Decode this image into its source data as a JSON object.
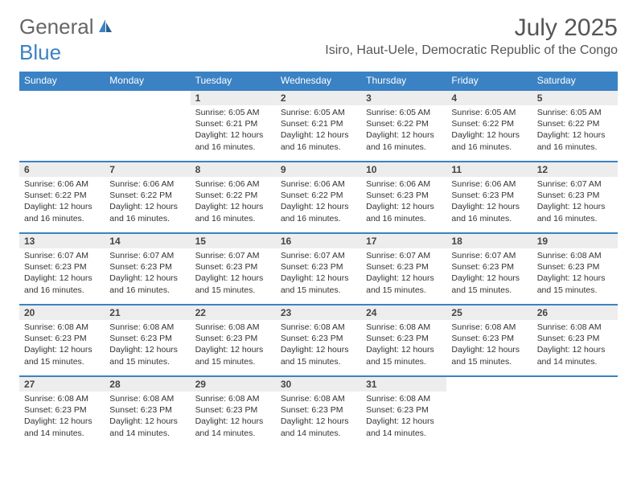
{
  "logo": {
    "text_gray": "General",
    "text_blue": "Blue"
  },
  "header": {
    "month_title": "July 2025",
    "location": "Isiro, Haut-Uele, Democratic Republic of the Congo"
  },
  "colors": {
    "header_bg": "#3b82c4",
    "header_text": "#ffffff",
    "daynum_bg": "#ededed",
    "border": "#3b82c4",
    "body_text": "#333333"
  },
  "day_labels": [
    "Sunday",
    "Monday",
    "Tuesday",
    "Wednesday",
    "Thursday",
    "Friday",
    "Saturday"
  ],
  "weeks": [
    {
      "days": [
        {
          "num": "",
          "sunrise": "",
          "sunset": "",
          "daylight": ""
        },
        {
          "num": "",
          "sunrise": "",
          "sunset": "",
          "daylight": ""
        },
        {
          "num": "1",
          "sunrise": "Sunrise: 6:05 AM",
          "sunset": "Sunset: 6:21 PM",
          "daylight": "Daylight: 12 hours and 16 minutes."
        },
        {
          "num": "2",
          "sunrise": "Sunrise: 6:05 AM",
          "sunset": "Sunset: 6:21 PM",
          "daylight": "Daylight: 12 hours and 16 minutes."
        },
        {
          "num": "3",
          "sunrise": "Sunrise: 6:05 AM",
          "sunset": "Sunset: 6:22 PM",
          "daylight": "Daylight: 12 hours and 16 minutes."
        },
        {
          "num": "4",
          "sunrise": "Sunrise: 6:05 AM",
          "sunset": "Sunset: 6:22 PM",
          "daylight": "Daylight: 12 hours and 16 minutes."
        },
        {
          "num": "5",
          "sunrise": "Sunrise: 6:05 AM",
          "sunset": "Sunset: 6:22 PM",
          "daylight": "Daylight: 12 hours and 16 minutes."
        }
      ]
    },
    {
      "days": [
        {
          "num": "6",
          "sunrise": "Sunrise: 6:06 AM",
          "sunset": "Sunset: 6:22 PM",
          "daylight": "Daylight: 12 hours and 16 minutes."
        },
        {
          "num": "7",
          "sunrise": "Sunrise: 6:06 AM",
          "sunset": "Sunset: 6:22 PM",
          "daylight": "Daylight: 12 hours and 16 minutes."
        },
        {
          "num": "8",
          "sunrise": "Sunrise: 6:06 AM",
          "sunset": "Sunset: 6:22 PM",
          "daylight": "Daylight: 12 hours and 16 minutes."
        },
        {
          "num": "9",
          "sunrise": "Sunrise: 6:06 AM",
          "sunset": "Sunset: 6:22 PM",
          "daylight": "Daylight: 12 hours and 16 minutes."
        },
        {
          "num": "10",
          "sunrise": "Sunrise: 6:06 AM",
          "sunset": "Sunset: 6:23 PM",
          "daylight": "Daylight: 12 hours and 16 minutes."
        },
        {
          "num": "11",
          "sunrise": "Sunrise: 6:06 AM",
          "sunset": "Sunset: 6:23 PM",
          "daylight": "Daylight: 12 hours and 16 minutes."
        },
        {
          "num": "12",
          "sunrise": "Sunrise: 6:07 AM",
          "sunset": "Sunset: 6:23 PM",
          "daylight": "Daylight: 12 hours and 16 minutes."
        }
      ]
    },
    {
      "days": [
        {
          "num": "13",
          "sunrise": "Sunrise: 6:07 AM",
          "sunset": "Sunset: 6:23 PM",
          "daylight": "Daylight: 12 hours and 16 minutes."
        },
        {
          "num": "14",
          "sunrise": "Sunrise: 6:07 AM",
          "sunset": "Sunset: 6:23 PM",
          "daylight": "Daylight: 12 hours and 16 minutes."
        },
        {
          "num": "15",
          "sunrise": "Sunrise: 6:07 AM",
          "sunset": "Sunset: 6:23 PM",
          "daylight": "Daylight: 12 hours and 15 minutes."
        },
        {
          "num": "16",
          "sunrise": "Sunrise: 6:07 AM",
          "sunset": "Sunset: 6:23 PM",
          "daylight": "Daylight: 12 hours and 15 minutes."
        },
        {
          "num": "17",
          "sunrise": "Sunrise: 6:07 AM",
          "sunset": "Sunset: 6:23 PM",
          "daylight": "Daylight: 12 hours and 15 minutes."
        },
        {
          "num": "18",
          "sunrise": "Sunrise: 6:07 AM",
          "sunset": "Sunset: 6:23 PM",
          "daylight": "Daylight: 12 hours and 15 minutes."
        },
        {
          "num": "19",
          "sunrise": "Sunrise: 6:08 AM",
          "sunset": "Sunset: 6:23 PM",
          "daylight": "Daylight: 12 hours and 15 minutes."
        }
      ]
    },
    {
      "days": [
        {
          "num": "20",
          "sunrise": "Sunrise: 6:08 AM",
          "sunset": "Sunset: 6:23 PM",
          "daylight": "Daylight: 12 hours and 15 minutes."
        },
        {
          "num": "21",
          "sunrise": "Sunrise: 6:08 AM",
          "sunset": "Sunset: 6:23 PM",
          "daylight": "Daylight: 12 hours and 15 minutes."
        },
        {
          "num": "22",
          "sunrise": "Sunrise: 6:08 AM",
          "sunset": "Sunset: 6:23 PM",
          "daylight": "Daylight: 12 hours and 15 minutes."
        },
        {
          "num": "23",
          "sunrise": "Sunrise: 6:08 AM",
          "sunset": "Sunset: 6:23 PM",
          "daylight": "Daylight: 12 hours and 15 minutes."
        },
        {
          "num": "24",
          "sunrise": "Sunrise: 6:08 AM",
          "sunset": "Sunset: 6:23 PM",
          "daylight": "Daylight: 12 hours and 15 minutes."
        },
        {
          "num": "25",
          "sunrise": "Sunrise: 6:08 AM",
          "sunset": "Sunset: 6:23 PM",
          "daylight": "Daylight: 12 hours and 15 minutes."
        },
        {
          "num": "26",
          "sunrise": "Sunrise: 6:08 AM",
          "sunset": "Sunset: 6:23 PM",
          "daylight": "Daylight: 12 hours and 14 minutes."
        }
      ]
    },
    {
      "days": [
        {
          "num": "27",
          "sunrise": "Sunrise: 6:08 AM",
          "sunset": "Sunset: 6:23 PM",
          "daylight": "Daylight: 12 hours and 14 minutes."
        },
        {
          "num": "28",
          "sunrise": "Sunrise: 6:08 AM",
          "sunset": "Sunset: 6:23 PM",
          "daylight": "Daylight: 12 hours and 14 minutes."
        },
        {
          "num": "29",
          "sunrise": "Sunrise: 6:08 AM",
          "sunset": "Sunset: 6:23 PM",
          "daylight": "Daylight: 12 hours and 14 minutes."
        },
        {
          "num": "30",
          "sunrise": "Sunrise: 6:08 AM",
          "sunset": "Sunset: 6:23 PM",
          "daylight": "Daylight: 12 hours and 14 minutes."
        },
        {
          "num": "31",
          "sunrise": "Sunrise: 6:08 AM",
          "sunset": "Sunset: 6:23 PM",
          "daylight": "Daylight: 12 hours and 14 minutes."
        },
        {
          "num": "",
          "sunrise": "",
          "sunset": "",
          "daylight": ""
        },
        {
          "num": "",
          "sunrise": "",
          "sunset": "",
          "daylight": ""
        }
      ]
    }
  ]
}
